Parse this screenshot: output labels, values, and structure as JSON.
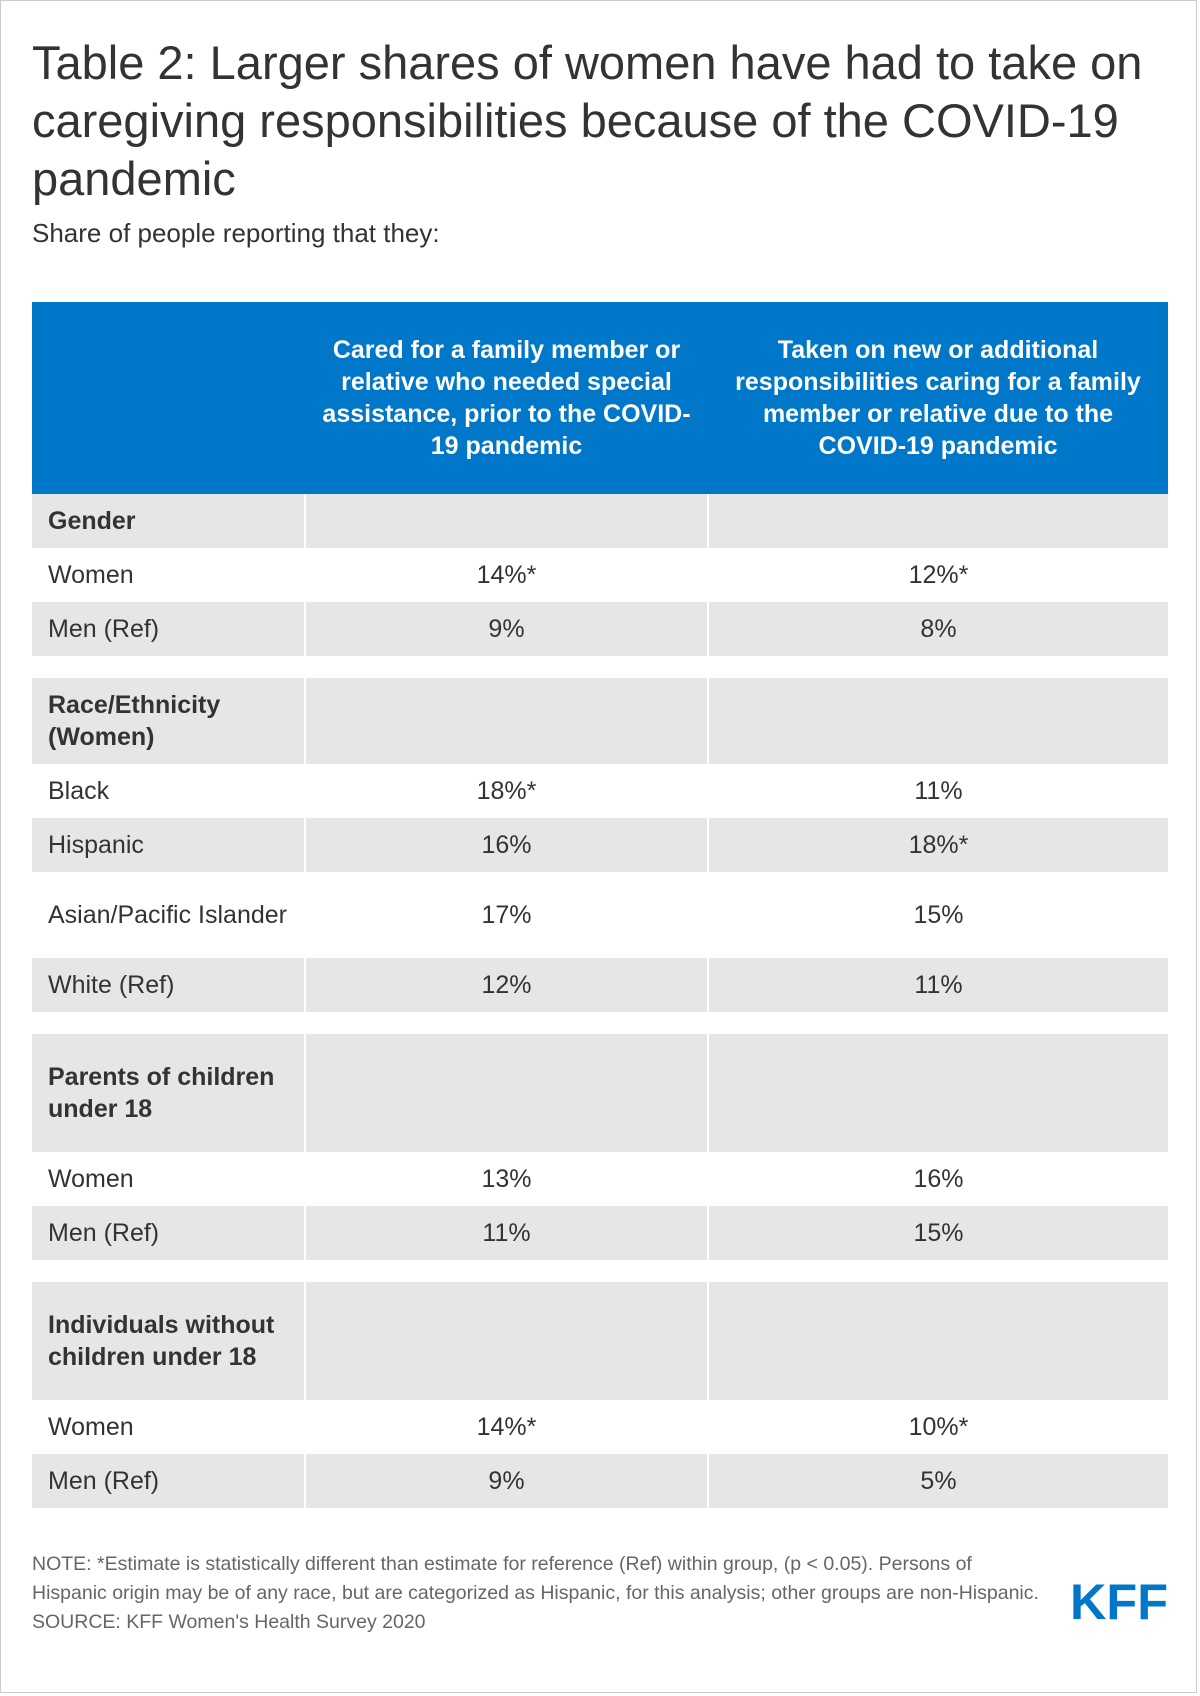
{
  "title": "Table 2: Larger shares of women have had to take on caregiving responsibilities because of the COVID-19 pandemic",
  "subtitle": "Share of people reporting that they:",
  "colors": {
    "header_bg": "#0077c8",
    "row_shade": "#e6e6e6",
    "logo": "#0077c8"
  },
  "chart_data": {
    "type": "table",
    "columns": [
      "",
      "Cared for a family member or relative who needed special assistance, prior to the COVID-19 pandemic",
      "Taken on new or additional responsibilities caring for a family member or relative due to the COVID-19 pandemic"
    ],
    "groups": [
      {
        "label": "Gender",
        "rows": [
          {
            "label": "Women",
            "prior": "14%*",
            "new": "12%*"
          },
          {
            "label": "Men (Ref)",
            "prior": "9%",
            "new": "8%"
          }
        ]
      },
      {
        "label": "Race/Ethnicity (Women)",
        "rows": [
          {
            "label": "Black",
            "prior": "18%*",
            "new": "11%"
          },
          {
            "label": "Hispanic",
            "prior": "16%",
            "new": "18%*"
          },
          {
            "label": "Asian/Pacific Islander",
            "prior": "17%",
            "new": "15%"
          },
          {
            "label": "White (Ref)",
            "prior": "12%",
            "new": "11%"
          }
        ]
      },
      {
        "label": "Parents of children under 18",
        "rows": [
          {
            "label": "Women",
            "prior": "13%",
            "new": "16%"
          },
          {
            "label": "Men (Ref)",
            "prior": "11%",
            "new": "15%"
          }
        ]
      },
      {
        "label": "Individuals without children under 18",
        "rows": [
          {
            "label": "Women",
            "prior": "14%*",
            "new": "10%*"
          },
          {
            "label": "Men (Ref)",
            "prior": "9%",
            "new": "5%"
          }
        ]
      }
    ]
  },
  "notes": {
    "note": "NOTE: *Estimate is statistically different than estimate for reference (Ref) within group, (p < 0.05). Persons of Hispanic origin may be of any race, but are categorized as Hispanic, for this analysis; other groups are non-Hispanic.",
    "source": "SOURCE: KFF Women's Health Survey 2020"
  },
  "logo": {
    "text": "KFF"
  }
}
